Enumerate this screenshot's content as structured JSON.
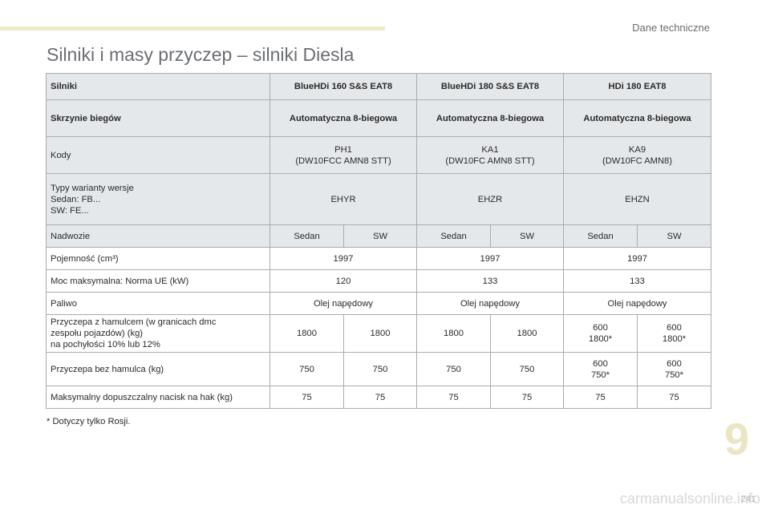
{
  "header": {
    "section": "Dane techniczne",
    "title": "Silniki i masy przyczep – silniki Diesla"
  },
  "table": {
    "rows": {
      "engines": [
        "Silniki",
        "BlueHDi 160 S&S EAT8",
        "BlueHDi 180 S&S EAT8",
        "HDi 180 EAT8"
      ],
      "gearboxes": [
        "Skrzynie biegów",
        "Automatyczna 8-biegowa",
        "Automatyczna 8-biegowa",
        "Automatyczna 8-biegowa"
      ],
      "codes": {
        "label": "Kody",
        "values": [
          [
            "PH1",
            "(DW10FCC AMN8 STT)"
          ],
          [
            "KA1",
            "(DW10FC AMN8 STT)"
          ],
          [
            "KA9",
            "(DW10FC AMN8)"
          ]
        ]
      },
      "types": {
        "label": [
          "Typy warianty wersje",
          "Sedan: FB...",
          "SW: FE..."
        ],
        "values": [
          "EHYR",
          "EHZR",
          "EHZN"
        ]
      },
      "body": {
        "label": "Nadwozie",
        "values": [
          "Sedan",
          "SW",
          "Sedan",
          "SW",
          "Sedan",
          "SW"
        ]
      },
      "capacity": {
        "label": "Pojemność (cm³)",
        "values": [
          "1997",
          "1997",
          "1997"
        ]
      },
      "power": {
        "label": "Moc maksymalna: Norma UE (kW)",
        "values": [
          "120",
          "133",
          "133"
        ]
      },
      "fuel": {
        "label": "Paliwo",
        "values": [
          "Olej napędowy",
          "Olej napędowy",
          "Olej napędowy"
        ]
      },
      "braked_trailer": {
        "label": [
          "Przyczepa z hamulcem (w granicach dmc",
          "zespołu pojazdów) (kg)",
          "na pochyłości 10% lub 12%"
        ],
        "values": [
          [
            "1800"
          ],
          [
            "1800"
          ],
          [
            "1800"
          ],
          [
            "1800"
          ],
          [
            "600",
            "1800*"
          ],
          [
            "600",
            "1800*"
          ]
        ]
      },
      "unbraked_trailer": {
        "label": "Przyczepa bez hamulca (kg)",
        "values": [
          [
            "750"
          ],
          [
            "750"
          ],
          [
            "750"
          ],
          [
            "750"
          ],
          [
            "600",
            "750*"
          ],
          [
            "600",
            "750*"
          ]
        ]
      },
      "nose_weight": {
        "label": "Maksymalny dopuszczalny nacisk na hak (kg)",
        "values": [
          "75",
          "75",
          "75",
          "75",
          "75",
          "75"
        ]
      }
    }
  },
  "footnote": "*  Dotyczy tylko Rosji.",
  "chapter_number": "9",
  "page_number": "241",
  "watermark": "carmanualsonline.info"
}
